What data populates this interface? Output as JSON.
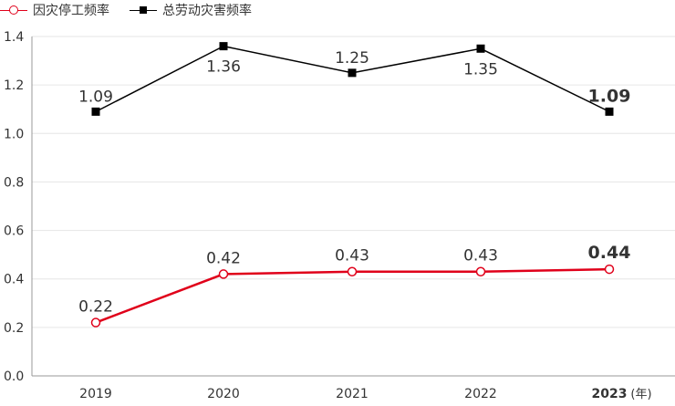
{
  "legend": {
    "item1_label": "因灾停工频率",
    "item2_label": "总劳动灾害频率"
  },
  "colors": {
    "lost_time": "#e0001a",
    "total": "#000000",
    "grid": "#e6e6e6",
    "axis": "#999999",
    "text": "#333333"
  },
  "chart_data": {
    "type": "line",
    "categories": [
      "2019",
      "2020",
      "2021",
      "2022",
      "2023"
    ],
    "x_unit_label": "(年)",
    "highlight_category": "2023",
    "ylim": [
      0.0,
      1.4
    ],
    "yticks": [
      "0.0",
      "0.2",
      "0.4",
      "0.6",
      "0.8",
      "1.0",
      "1.2",
      "1.4"
    ],
    "grid": true,
    "legend_position": "top-left",
    "series": [
      {
        "name": "因灾停工频率",
        "marker": "circle-open",
        "values": [
          0.22,
          0.42,
          0.43,
          0.43,
          0.44
        ],
        "labels": [
          "0.22",
          "0.42",
          "0.43",
          "0.43",
          "0.44"
        ]
      },
      {
        "name": "总劳动灾害频率",
        "marker": "square",
        "values": [
          1.09,
          1.36,
          1.25,
          1.35,
          1.09
        ],
        "labels": [
          "1.09",
          "1.36",
          "1.25",
          "1.35",
          "1.09"
        ]
      }
    ]
  }
}
